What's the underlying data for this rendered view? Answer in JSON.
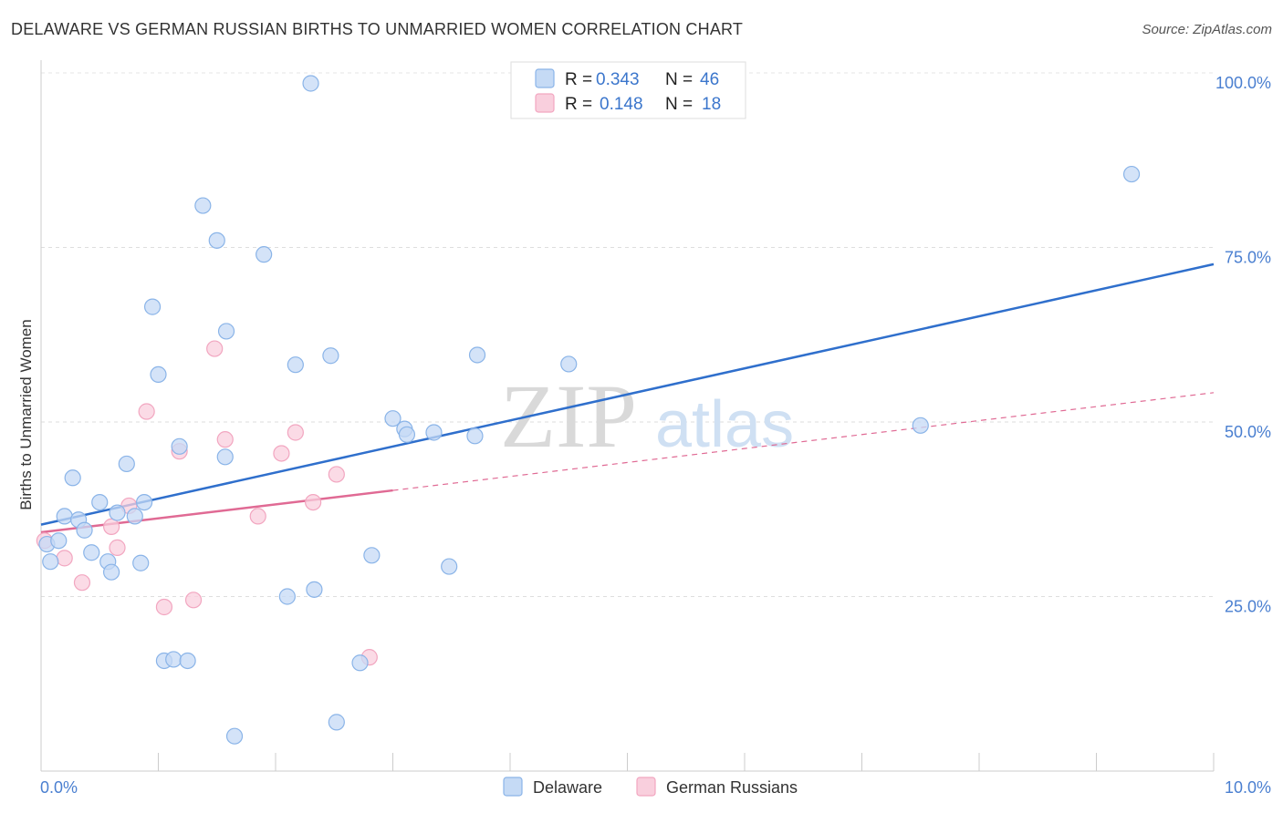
{
  "title": "DELAWARE VS GERMAN RUSSIAN BIRTHS TO UNMARRIED WOMEN CORRELATION CHART",
  "source": "Source: ZipAtlas.com",
  "watermark": {
    "zip": "ZIP",
    "atlas": "atlas"
  },
  "chart_data": {
    "type": "scatter",
    "title": "DELAWARE VS GERMAN RUSSIAN BIRTHS TO UNMARRIED WOMEN CORRELATION CHART",
    "xlabel": "",
    "ylabel": "Births to Unmarried Women",
    "xlim": [
      0,
      10
    ],
    "ylim": [
      0,
      100
    ],
    "x_tick_labels": {
      "min": "0.0%",
      "max": "10.0%"
    },
    "y_ticks": [
      {
        "value": 100,
        "label": "100.0%"
      },
      {
        "value": 75,
        "label": "75.0%"
      },
      {
        "value": 50,
        "label": "50.0%"
      },
      {
        "value": 25,
        "label": "25.0%"
      }
    ],
    "grid": true,
    "legend": {
      "position": "top-center",
      "entries": [
        {
          "series": "Delaware",
          "r_label": "R =",
          "r_value": "0.343",
          "n_label": "N =",
          "n_value": "46"
        },
        {
          "series": "German Russians",
          "r_label": "R =",
          "r_value": "0.148",
          "n_label": "N =",
          "n_value": "18"
        }
      ]
    },
    "series": [
      {
        "name": "Delaware",
        "color": "#8ab4e8",
        "fill": "#c5daf5",
        "trend_color": "#2f6fcc",
        "trend": {
          "x0": 0.0,
          "y0": 35.3,
          "x1": 10.0,
          "y1": 72.6,
          "dashed_from": null
        },
        "points": [
          [
            0.05,
            32.5
          ],
          [
            0.08,
            30.0
          ],
          [
            0.15,
            33.0
          ],
          [
            0.2,
            36.5
          ],
          [
            0.27,
            42.0
          ],
          [
            0.32,
            36.0
          ],
          [
            0.37,
            34.5
          ],
          [
            0.43,
            31.3
          ],
          [
            0.5,
            38.5
          ],
          [
            0.57,
            30.0
          ],
          [
            0.6,
            28.5
          ],
          [
            0.65,
            37.0
          ],
          [
            0.73,
            44.0
          ],
          [
            0.8,
            36.5
          ],
          [
            0.85,
            29.8
          ],
          [
            0.88,
            38.5
          ],
          [
            0.95,
            66.5
          ],
          [
            1.0,
            56.8
          ],
          [
            1.05,
            15.8
          ],
          [
            1.13,
            16.0
          ],
          [
            1.18,
            46.5
          ],
          [
            1.25,
            15.8
          ],
          [
            1.38,
            81.0
          ],
          [
            1.5,
            76.0
          ],
          [
            1.57,
            45.0
          ],
          [
            1.58,
            63.0
          ],
          [
            1.65,
            5.0
          ],
          [
            1.9,
            74.0
          ],
          [
            2.1,
            25.0
          ],
          [
            2.17,
            58.2
          ],
          [
            2.3,
            98.5
          ],
          [
            2.33,
            26.0
          ],
          [
            2.47,
            59.5
          ],
          [
            2.52,
            7.0
          ],
          [
            2.72,
            15.5
          ],
          [
            2.82,
            30.9
          ],
          [
            3.0,
            50.5
          ],
          [
            3.1,
            49.0
          ],
          [
            3.12,
            48.2
          ],
          [
            3.35,
            48.5
          ],
          [
            3.48,
            29.3
          ],
          [
            3.7,
            48.0
          ],
          [
            3.72,
            59.6
          ],
          [
            4.5,
            58.3
          ],
          [
            7.5,
            49.5
          ],
          [
            9.3,
            85.5
          ]
        ]
      },
      {
        "name": "German Russians",
        "color": "#f2a6c0",
        "fill": "#f9cfdd",
        "trend_color": "#e06a94",
        "trend": {
          "x0": 0.0,
          "y0": 34.2,
          "x1": 10.0,
          "y1": 54.2,
          "dashed_from": 3.0
        },
        "points": [
          [
            0.03,
            33.0
          ],
          [
            0.2,
            30.5
          ],
          [
            0.35,
            27.0
          ],
          [
            0.6,
            35.0
          ],
          [
            0.65,
            32.0
          ],
          [
            0.75,
            38.0
          ],
          [
            0.9,
            51.5
          ],
          [
            1.05,
            23.5
          ],
          [
            1.18,
            45.8
          ],
          [
            1.3,
            24.5
          ],
          [
            1.48,
            60.5
          ],
          [
            1.57,
            47.5
          ],
          [
            1.85,
            36.5
          ],
          [
            2.05,
            45.5
          ],
          [
            2.17,
            48.5
          ],
          [
            2.32,
            38.5
          ],
          [
            2.52,
            42.5
          ],
          [
            2.8,
            16.3
          ]
        ]
      }
    ]
  },
  "bottom_legend": {
    "items": [
      {
        "label": "Delaware"
      },
      {
        "label": "German Russians"
      }
    ]
  }
}
